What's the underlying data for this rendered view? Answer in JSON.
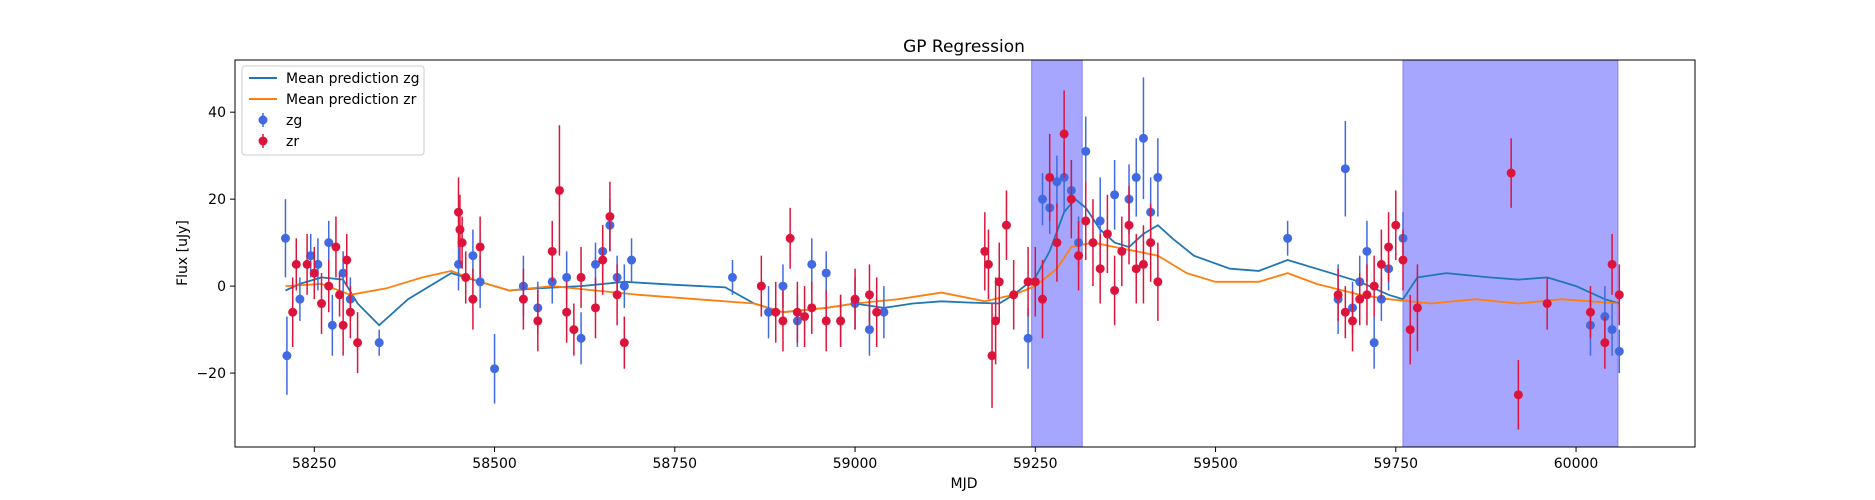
{
  "chart_data": {
    "type": "scatter",
    "title": "GP Regression",
    "xlabel": "MJD",
    "ylabel": "Flux [uJy]",
    "xlim": [
      58140,
      60165
    ],
    "ylim": [
      -37,
      52
    ],
    "xticks": [
      58250,
      58500,
      58750,
      59000,
      59250,
      59500,
      59750,
      60000
    ],
    "yticks": [
      -20,
      0,
      20,
      40
    ],
    "grid": false,
    "legend_position": "top-left",
    "colors": {
      "zg": "#4169e1",
      "zr": "#dc143c",
      "mean_zg": "#1f77b4",
      "mean_zr": "#ff7f0e",
      "band": "#8080ff"
    },
    "shaded_regions": [
      [
        59245,
        59315
      ],
      [
        59760,
        60058
      ]
    ],
    "legend": [
      "Mean prediction zg",
      "Mean prediction zr",
      "zg",
      "zr"
    ],
    "series": [
      {
        "name": "Mean prediction zg",
        "kind": "line",
        "x": [
          58210,
          58230,
          58260,
          58290,
          58310,
          58340,
          58380,
          58440,
          58480,
          58520,
          58560,
          58620,
          58680,
          58750,
          58820,
          58860,
          58900,
          58960,
          59000,
          59040,
          59080,
          59120,
          59160,
          59200,
          59220,
          59250,
          59270,
          59290,
          59305,
          59320,
          59340,
          59360,
          59380,
          59400,
          59420,
          59440,
          59470,
          59520,
          59560,
          59600,
          59640,
          59700,
          59740,
          59760,
          59780,
          59820,
          59880,
          59920,
          59960,
          60000,
          60040,
          60060
        ],
        "y": [
          -1,
          0.5,
          2,
          1.5,
          -4,
          -9,
          -3,
          3,
          1,
          -1,
          -0.5,
          0,
          1,
          0.3,
          -0.3,
          -4,
          -6,
          -5,
          -4,
          -5,
          -4,
          -3.5,
          -3.8,
          -4,
          -2,
          2,
          8,
          17,
          20,
          18,
          13,
          10,
          9,
          12,
          14,
          11,
          7,
          4,
          3.5,
          6,
          4,
          1,
          -2,
          -3,
          2,
          3,
          2,
          1.5,
          2,
          0,
          -3,
          -4
        ]
      },
      {
        "name": "Mean prediction zr",
        "kind": "line",
        "x": [
          58210,
          58260,
          58300,
          58350,
          58400,
          58440,
          58480,
          58520,
          58580,
          58640,
          58700,
          58780,
          58860,
          58900,
          58960,
          59000,
          59060,
          59120,
          59180,
          59220,
          59250,
          59280,
          59300,
          59330,
          59360,
          59390,
          59420,
          59460,
          59500,
          59560,
          59600,
          59640,
          59700,
          59740,
          59800,
          59860,
          59920,
          59980,
          60020,
          60058
        ],
        "y": [
          0,
          0.5,
          -2,
          -0.5,
          2,
          3.5,
          1,
          -1,
          0,
          -1,
          -2,
          -3,
          -4,
          -6,
          -5,
          -4,
          -3,
          -1.5,
          -3.5,
          -2,
          0,
          4,
          9,
          10,
          9,
          8,
          7,
          3,
          1,
          1,
          3,
          0.5,
          -2,
          -3,
          -4,
          -3,
          -4,
          -3,
          -3.5,
          -4
        ]
      },
      {
        "name": "zg",
        "kind": "errorbar",
        "x": [
          58210,
          58212,
          58230,
          58245,
          58255,
          58270,
          58275,
          58290,
          58300,
          58340,
          58450,
          58470,
          58480,
          58500,
          58540,
          58560,
          58580,
          58600,
          58620,
          58640,
          58650,
          58660,
          58670,
          58680,
          58690,
          58830,
          58880,
          58900,
          58920,
          58940,
          58960,
          58980,
          59000,
          59020,
          59040,
          59240,
          59260,
          59270,
          59280,
          59290,
          59300,
          59310,
          59320,
          59340,
          59360,
          59380,
          59390,
          59400,
          59410,
          59420,
          59600,
          59670,
          59680,
          59690,
          59700,
          59710,
          59720,
          59730,
          59740,
          59760,
          60020,
          60040,
          60050,
          60060
        ],
        "y": [
          11,
          -16,
          -3,
          7,
          5,
          10,
          -9,
          3,
          -3,
          -13,
          5,
          7,
          1,
          -19,
          0,
          -5,
          1,
          2,
          -12,
          5,
          8,
          14,
          2,
          0,
          6,
          2,
          -6,
          0,
          -8,
          5,
          3,
          -8,
          -4,
          -10,
          -6,
          -12,
          20,
          18,
          24,
          25,
          22,
          10,
          31,
          15,
          21,
          20,
          25,
          34,
          17,
          25,
          11,
          -3,
          27,
          -5,
          1,
          8,
          -13,
          -3,
          4,
          11,
          -9,
          -7,
          -10,
          -15
        ],
        "err": [
          9,
          9,
          5,
          5,
          6,
          5,
          7,
          5,
          5,
          3,
          6,
          6,
          6,
          8,
          7,
          6,
          5,
          6,
          6,
          5,
          6,
          6,
          5,
          5,
          5,
          4,
          6,
          5,
          6,
          6,
          5,
          6,
          6,
          6,
          6,
          7,
          6,
          6,
          6,
          8,
          7,
          6,
          8,
          10,
          8,
          8,
          9,
          14,
          8,
          9,
          4,
          8,
          11,
          6,
          6,
          7,
          6,
          5,
          5,
          6,
          7,
          7,
          6,
          5
        ]
      },
      {
        "name": "zr",
        "kind": "errorbar",
        "x": [
          58220,
          58225,
          58240,
          58250,
          58260,
          58270,
          58280,
          58285,
          58290,
          58295,
          58300,
          58310,
          58450,
          58452,
          58455,
          58460,
          58470,
          58480,
          58540,
          58560,
          58580,
          58590,
          58600,
          58610,
          58620,
          58640,
          58650,
          58660,
          58670,
          58680,
          58870,
          58890,
          58900,
          58910,
          58920,
          58930,
          58940,
          58960,
          58980,
          59000,
          59020,
          59030,
          59180,
          59185,
          59190,
          59195,
          59200,
          59210,
          59220,
          59240,
          59250,
          59260,
          59270,
          59280,
          59290,
          59300,
          59310,
          59320,
          59330,
          59340,
          59350,
          59360,
          59370,
          59380,
          59390,
          59400,
          59410,
          59420,
          59670,
          59680,
          59690,
          59700,
          59710,
          59720,
          59730,
          59740,
          59750,
          59760,
          59770,
          59780,
          59910,
          59920,
          59960,
          60020,
          60040,
          60050,
          60060
        ],
        "y": [
          -6,
          5,
          5,
          3,
          -4,
          0,
          9,
          -2,
          -9,
          6,
          -6,
          -13,
          17,
          13,
          10,
          2,
          -3,
          9,
          -3,
          -8,
          8,
          22,
          -6,
          -10,
          2,
          -5,
          6,
          16,
          -2,
          -13,
          0,
          -6,
          -8,
          11,
          -6,
          -7,
          -5,
          -8,
          -8,
          -3,
          -2,
          -6,
          8,
          5,
          -16,
          -8,
          1,
          14,
          -2,
          1,
          1,
          -3,
          25,
          10,
          35,
          20,
          7,
          15,
          10,
          4,
          12,
          -1,
          8,
          14,
          4,
          5,
          10,
          1,
          -2,
          -6,
          -8,
          -3,
          -2,
          0,
          5,
          9,
          14,
          6,
          -10,
          -5,
          26,
          -25,
          -4,
          -6,
          -13,
          5,
          -2
        ],
        "err": [
          8,
          6,
          7,
          6,
          7,
          6,
          7,
          5,
          7,
          6,
          6,
          7,
          8,
          8,
          6,
          6,
          7,
          7,
          7,
          7,
          7,
          15,
          7,
          6,
          7,
          7,
          8,
          8,
          7,
          6,
          7,
          7,
          7,
          7,
          7,
          7,
          6,
          7,
          6,
          7,
          7,
          8,
          9,
          8,
          12,
          10,
          9,
          8,
          8,
          8,
          8,
          9,
          10,
          9,
          10,
          9,
          8,
          9,
          10,
          8,
          9,
          8,
          8,
          9,
          8,
          9,
          9,
          9,
          6,
          6,
          7,
          6,
          7,
          7,
          8,
          8,
          8,
          7,
          8,
          10,
          8,
          8,
          6,
          6,
          6,
          7,
          7
        ]
      }
    ]
  }
}
